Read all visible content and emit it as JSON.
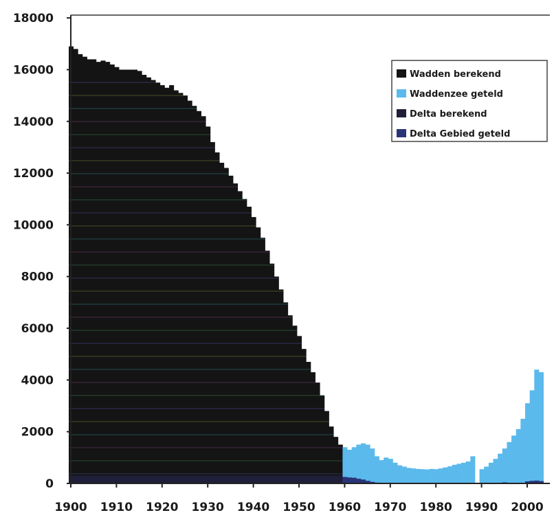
{
  "chart_data": {
    "type": "area",
    "title": "",
    "xlabel": "",
    "ylabel": "",
    "xlim": [
      1900,
      2004
    ],
    "ylim": [
      0,
      18000
    ],
    "grid": false,
    "legend_position": "top-right",
    "x_ticks": [
      1900,
      1910,
      1920,
      1930,
      1940,
      1950,
      1960,
      1970,
      1980,
      1990,
      2000
    ],
    "y_ticks": [
      0,
      2000,
      4000,
      6000,
      8000,
      10000,
      12000,
      14000,
      16000,
      18000
    ],
    "series": [
      {
        "name": "Wadden berekend",
        "color": "#141414",
        "x": [
          1900,
          1901,
          1902,
          1903,
          1904,
          1905,
          1906,
          1907,
          1908,
          1909,
          1910,
          1911,
          1912,
          1913,
          1914,
          1915,
          1916,
          1917,
          1918,
          1919,
          1920,
          1921,
          1922,
          1923,
          1924,
          1925,
          1926,
          1927,
          1928,
          1929,
          1930,
          1931,
          1932,
          1933,
          1934,
          1935,
          1936,
          1937,
          1938,
          1939,
          1940,
          1941,
          1942,
          1943,
          1944,
          1945,
          1946,
          1947,
          1948,
          1949,
          1950,
          1951,
          1952,
          1953,
          1954,
          1955,
          1956,
          1957,
          1958,
          1959
        ],
        "values": [
          16900,
          16800,
          16600,
          16500,
          16400,
          16400,
          16300,
          16350,
          16300,
          16200,
          16100,
          16000,
          16000,
          16000,
          16000,
          15950,
          15800,
          15700,
          15600,
          15500,
          15400,
          15300,
          15400,
          15200,
          15100,
          15000,
          14800,
          14600,
          14400,
          14200,
          13800,
          13200,
          12800,
          12400,
          12200,
          11900,
          11600,
          11300,
          11000,
          10700,
          10300,
          9900,
          9500,
          9000,
          8500,
          8000,
          7500,
          7000,
          6500,
          6100,
          5700,
          5200,
          4700,
          4300,
          3900,
          3400,
          2800,
          2200,
          1800,
          1500
        ]
      },
      {
        "name": "Waddenzee geteld",
        "color": "#5bb9ec",
        "x": [
          1960,
          1961,
          1962,
          1963,
          1964,
          1965,
          1966,
          1967,
          1968,
          1969,
          1970,
          1971,
          1972,
          1973,
          1974,
          1975,
          1976,
          1977,
          1978,
          1979,
          1980,
          1981,
          1982,
          1983,
          1984,
          1985,
          1986,
          1987,
          1988,
          1989,
          1990,
          1991,
          1992,
          1993,
          1994,
          1995,
          1996,
          1997,
          1998,
          1999,
          2000,
          2001,
          2002,
          2003
        ],
        "values": [
          1400,
          1300,
          1400,
          1500,
          1550,
          1500,
          1350,
          1050,
          900,
          1000,
          950,
          800,
          700,
          650,
          600,
          580,
          560,
          550,
          540,
          560,
          550,
          580,
          620,
          660,
          720,
          760,
          800,
          850,
          1050,
          0,
          550,
          650,
          800,
          950,
          1150,
          1350,
          1600,
          1850,
          2100,
          2500,
          3100,
          3600,
          4400,
          4300
        ]
      },
      {
        "name": "Delta berekend",
        "color": "#1f1f3a",
        "x": [
          1900,
          1959
        ],
        "values": [
          300,
          300
        ]
      },
      {
        "name": "Delta Gebied geteld",
        "color": "#2a3478",
        "x": [
          1960,
          1961,
          1962,
          1963,
          1964,
          1965,
          1966,
          1967,
          1968,
          1969,
          1970,
          1980,
          1990,
          1995,
          2000,
          2001,
          2002,
          2003
        ],
        "values": [
          250,
          230,
          220,
          180,
          150,
          100,
          60,
          30,
          20,
          10,
          0,
          0,
          20,
          40,
          80,
          100,
          110,
          90
        ]
      }
    ]
  }
}
